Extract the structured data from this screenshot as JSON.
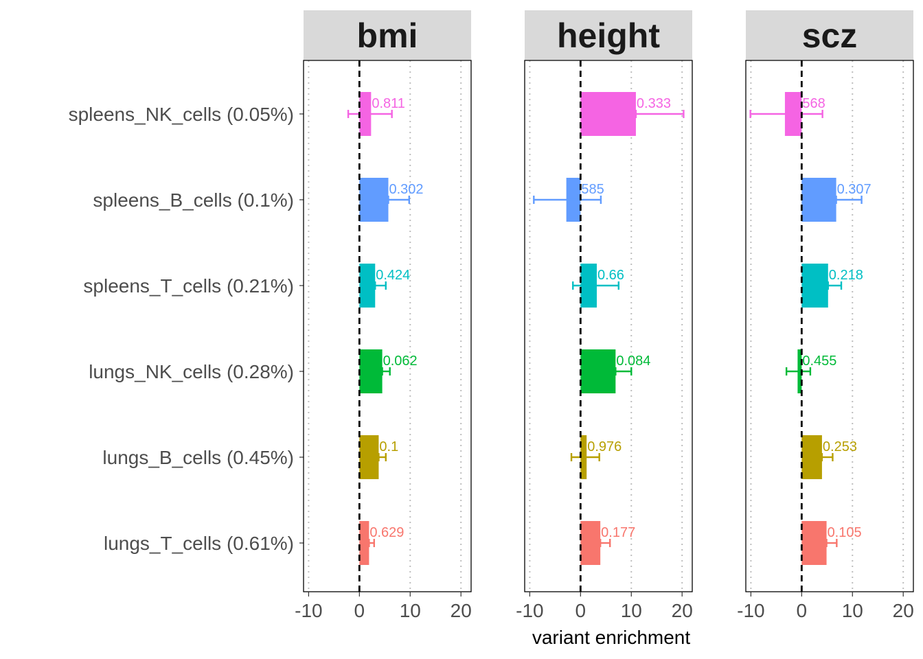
{
  "chart_data": {
    "type": "bar",
    "orientation": "horizontal",
    "xlabel": "variant enrichment",
    "xlim": [
      -11,
      22
    ],
    "xticks": [
      -10,
      0,
      10,
      20
    ],
    "xtick_labels": [
      "-10",
      "0",
      "10",
      "20"
    ],
    "grid": "vertical dotted",
    "reference_line": 0,
    "legend": "none",
    "categories": [
      "spleens_NK_cells (0.05%)",
      "spleens_B_cells (0.1%)",
      "spleens_T_cells (0.21%)",
      "lungs_NK_cells (0.28%)",
      "lungs_B_cells (0.45%)",
      "lungs_T_cells (0.61%)"
    ],
    "colors": [
      "#F564E3",
      "#619CFF",
      "#00BFC4",
      "#00BA38",
      "#B79F00",
      "#F8766D"
    ],
    "panels": [
      {
        "name": "bmi",
        "values": [
          2.3,
          5.7,
          3.1,
          4.5,
          3.8,
          1.9
        ],
        "err_low": [
          -2.2,
          5.7,
          3.1,
          4.5,
          3.8,
          1.9
        ],
        "err_high": [
          6.4,
          9.8,
          5.2,
          6.0,
          5.2,
          2.9
        ],
        "labels": [
          "0.811",
          "0.302",
          "0.424",
          "0.062",
          "0.1",
          "0.629"
        ]
      },
      {
        "name": "height",
        "values": [
          10.9,
          -2.8,
          3.2,
          6.9,
          1.2,
          3.9
        ],
        "err_low": [
          10.9,
          -9.2,
          -1.5,
          6.9,
          -1.8,
          3.9
        ],
        "err_high": [
          20.3,
          4.0,
          7.5,
          10.0,
          3.7,
          5.8
        ],
        "labels": [
          "0.333",
          "585",
          "0.66",
          "0.084",
          "0.976",
          "0.177"
        ]
      },
      {
        "name": "scz",
        "values": [
          -3.3,
          6.8,
          5.2,
          -0.8,
          4.0,
          4.9
        ],
        "err_low": [
          -10.1,
          6.8,
          5.2,
          -3.0,
          4.0,
          4.9
        ],
        "err_high": [
          4.1,
          11.8,
          7.8,
          1.7,
          6.1,
          6.9
        ],
        "labels": [
          "568",
          "0.307",
          "0.218",
          "0.455",
          "0.253",
          "0.105"
        ]
      }
    ]
  }
}
